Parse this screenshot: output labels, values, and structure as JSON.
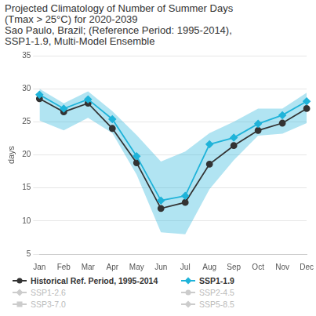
{
  "chart_data": {
    "type": "line",
    "title": "Projected Climatology of Number of Summer Days (Tmax > 25°C) for 2020-2039",
    "subtitle": "Sao Paulo, Brazil; (Reference Period: 1995-2014), SSP1-1.9, Multi-Model Ensemble",
    "y_label": "days",
    "categories": [
      "Jan",
      "Feb",
      "Mar",
      "Apr",
      "May",
      "Jun",
      "Jul",
      "Aug",
      "Sep",
      "Oct",
      "Nov",
      "Dec"
    ],
    "ylim": [
      5,
      35
    ],
    "yticks": [
      5,
      10,
      15,
      20,
      25,
      30,
      35
    ],
    "grid": true,
    "legend": "bottom",
    "series": [
      {
        "name": "Historical Ref. Period, 1995-2014",
        "color": "#333333",
        "marker": "circle",
        "values": [
          28.5,
          26.5,
          27.8,
          24.0,
          18.8,
          11.9,
          12.8,
          18.6,
          21.4,
          23.7,
          24.8,
          27.0
        ]
      },
      {
        "name": "SSP1-1.9",
        "color": "#1fb3d9",
        "marker": "diamond",
        "values": [
          29.1,
          27.0,
          28.4,
          25.4,
          19.8,
          13.1,
          13.8,
          21.6,
          22.6,
          24.7,
          26.0,
          28.1
        ],
        "range_low": [
          25.2,
          23.7,
          25.6,
          23.3,
          17.0,
          8.3,
          8.0,
          14.8,
          19.2,
          22.9,
          23.2,
          24.8
        ],
        "range_high": [
          30.0,
          27.8,
          29.6,
          26.6,
          23.0,
          19.0,
          20.5,
          23.3,
          25.0,
          27.0,
          27.0,
          29.4
        ]
      },
      {
        "name": "SSP1-2.6",
        "color": "#cccccc",
        "marker": "diamond",
        "values": [
          null,
          null,
          null,
          null,
          null,
          null,
          null,
          null,
          null,
          null,
          null,
          null
        ]
      },
      {
        "name": "SSP2-4.5",
        "color": "#cccccc",
        "marker": "circle",
        "values": [
          null,
          null,
          null,
          null,
          null,
          null,
          null,
          null,
          null,
          null,
          null,
          null
        ]
      },
      {
        "name": "SSP3-7.0",
        "color": "#cccccc",
        "marker": "square",
        "values": [
          null,
          null,
          null,
          null,
          null,
          null,
          null,
          null,
          null,
          null,
          null,
          null
        ]
      },
      {
        "name": "SSP5-8.5",
        "color": "#cccccc",
        "marker": "diamond",
        "values": [
          null,
          null,
          null,
          null,
          null,
          null,
          null,
          null,
          null,
          null,
          null,
          null
        ]
      }
    ]
  }
}
